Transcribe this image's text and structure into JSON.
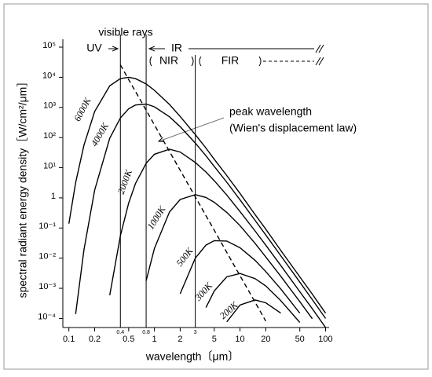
{
  "chart_data": {
    "type": "line",
    "xlabel": "wavelength〔μm〕",
    "ylabel": "spectral radiant energy density［W/cm²/μm］",
    "log_x": true,
    "log_y": true,
    "xlim": [
      0.085,
      110
    ],
    "ylim": [
      5e-05,
      100000
    ],
    "xticks": [
      0.1,
      0.2,
      0.5,
      1,
      2,
      5,
      10,
      20,
      50,
      100
    ],
    "yticks": [
      {
        "value": 100000,
        "label": "10⁵"
      },
      {
        "value": 10000,
        "label": "10⁴"
      },
      {
        "value": 1000,
        "label": "10³"
      },
      {
        "value": 100,
        "label": "10²"
      },
      {
        "value": 10,
        "label": "10¹"
      },
      1,
      {
        "value": 0.1,
        "label": "10⁻¹"
      },
      {
        "value": 0.01,
        "label": "10⁻²"
      },
      {
        "value": 0.001,
        "label": "10⁻³"
      },
      {
        "value": 0.0001,
        "label": "10⁻⁴"
      }
    ],
    "x": [
      0.1,
      0.12,
      0.15,
      0.2,
      0.3,
      0.4,
      0.5,
      0.6,
      0.8,
      1,
      1.5,
      2,
      3,
      4,
      5,
      7,
      10,
      15,
      20,
      30,
      50,
      70,
      100
    ],
    "series": [
      {
        "name": "6000K",
        "color": "#000000",
        "values": [
          0.14,
          3.2,
          56,
          730,
          5200,
          9100,
          10000,
          9000,
          6000,
          3700,
          1250,
          500,
          126,
          45,
          19,
          5.5,
          1.4,
          0.28,
          0.092,
          0.018,
          0.0024,
          0.00064,
          0.00015
        ]
      },
      {
        "name": "4000K",
        "color": "#000000",
        "values": [
          null,
          0.00014,
          0.019,
          1.8,
          95,
          450,
          900,
          1200,
          1290,
          1050,
          490,
          230,
          66,
          25,
          11,
          3.3,
          0.86,
          0.18,
          0.059,
          0.012,
          0.0016,
          0.00042,
          0.0001
        ]
      },
      {
        "name": "2000K",
        "color": "#000000",
        "values": [
          null,
          null,
          null,
          null,
          0.00059,
          0.056,
          0.67,
          3.0,
          14,
          28,
          41,
          33,
          15,
          7.2,
          3.7,
          1.24,
          0.35,
          0.08,
          0.027,
          0.0057,
          0.00077,
          0.00021,
          5e-05
        ]
      },
      {
        "name": "1000K",
        "color": "#000000",
        "values": [
          null,
          null,
          null,
          null,
          null,
          null,
          null,
          null,
          0.0018,
          0.021,
          0.34,
          0.88,
          1.28,
          1.03,
          0.71,
          0.33,
          0.12,
          0.031,
          0.011,
          0.0025,
          0.00036,
          9.8e-05,
          null
        ]
      },
      {
        "name": "500K",
        "color": "#000000",
        "values": [
          null,
          null,
          null,
          null,
          null,
          null,
          null,
          null,
          null,
          null,
          null,
          0.00066,
          0.01,
          0.027,
          0.038,
          0.037,
          0.022,
          0.0085,
          0.0036,
          0.00095,
          0.00015,
          null,
          null
        ]
      },
      {
        "name": "300K",
        "color": "#000000",
        "values": [
          null,
          null,
          null,
          null,
          null,
          null,
          null,
          null,
          null,
          null,
          null,
          null,
          null,
          0.00023,
          0.00082,
          0.0024,
          0.0031,
          0.0021,
          0.0012,
          0.00039,
          7.4e-05,
          null,
          null
        ]
      },
      {
        "name": "200K",
        "color": "#000000",
        "values": [
          null,
          null,
          null,
          null,
          null,
          null,
          null,
          null,
          null,
          null,
          null,
          null,
          null,
          null,
          null,
          7.7e-05,
          0.00028,
          0.00041,
          0.00033,
          0.00015,
          null,
          null,
          null
        ]
      },
      {
        "color": "#000000",
        "dashed": true,
        "values": [
          null,
          null,
          null,
          null,
          null,
          25700,
          8410,
          3380,
          802,
          263,
          34.6,
          8.2,
          1.08,
          0.257,
          0.084,
          0.0156,
          0.0026,
          0.00035,
          8.2e-05,
          null,
          null,
          null,
          null
        ]
      }
    ],
    "vlines": [
      0.4,
      0.8,
      3
    ],
    "annotations": {
      "visible": "visible rays",
      "uv": "UV",
      "ir": "IR",
      "nir": "NIR",
      "fir": "FIR",
      "peak": [
        "peak wavelength",
        "(Wien's displacement law)"
      ]
    }
  }
}
